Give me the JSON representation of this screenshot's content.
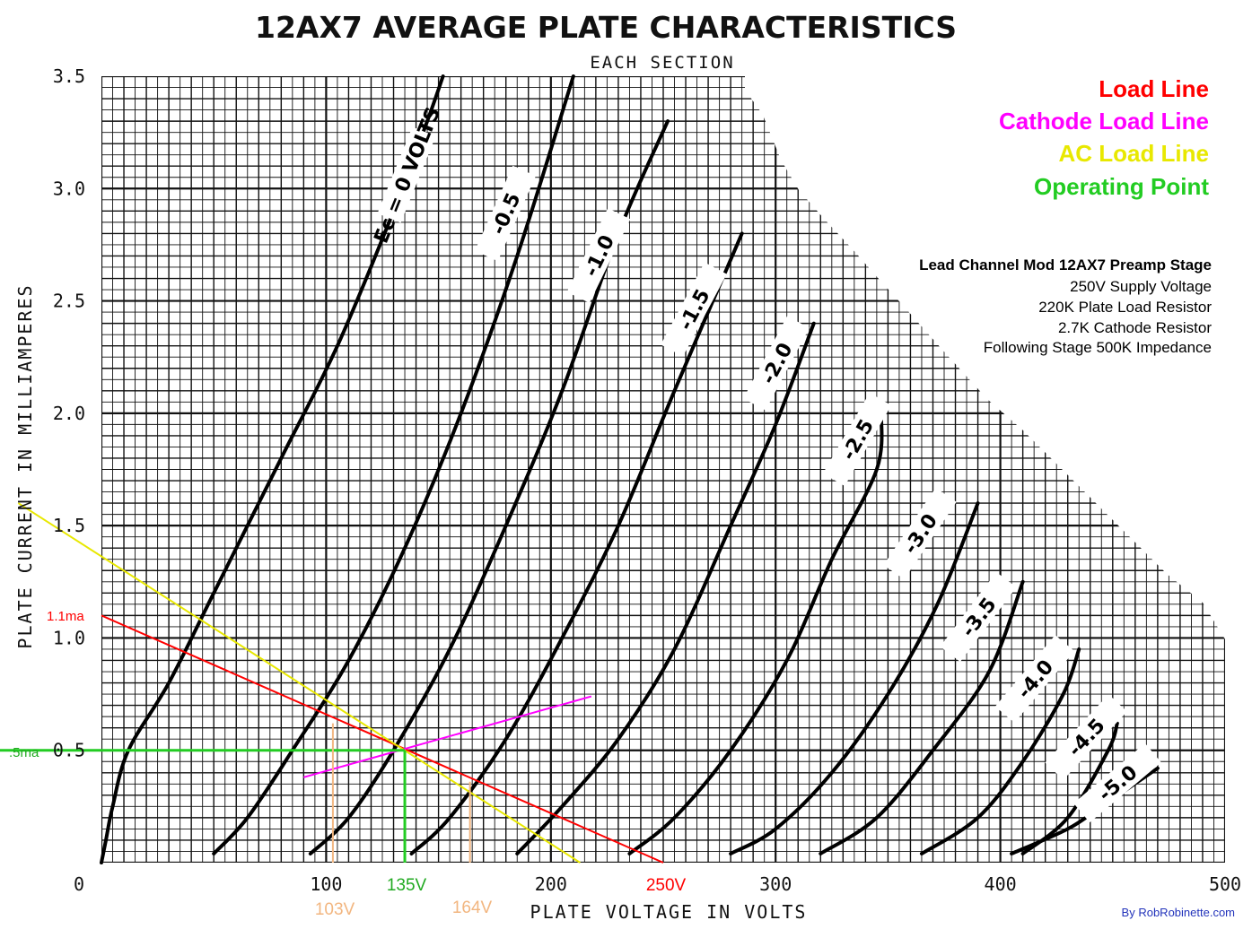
{
  "chart_data": {
    "type": "line",
    "title": "12AX7 AVERAGE PLATE CHARACTERISTICS",
    "subtitle": "EACH SECTION",
    "xlabel": "PLATE VOLTAGE IN VOLTS",
    "ylabel": "PLATE CURRENT IN MILLIAMPERES",
    "xlim": [
      0,
      500
    ],
    "ylim": [
      0,
      3.5
    ],
    "x_ticks": [
      "0",
      "100",
      "200",
      "300",
      "400",
      "500"
    ],
    "y_ticks": [
      "3.5",
      "3.0",
      "2.5",
      "2.0",
      "1.5",
      "1.0",
      "0.5"
    ],
    "grid": true,
    "legend_position": "top-right",
    "legend": [
      {
        "name": "Load Line",
        "color": "#ff0000"
      },
      {
        "name": "Cathode Load Line",
        "color": "#ff00ff"
      },
      {
        "name": "AC Load Line",
        "color": "#e8e800"
      },
      {
        "name": "Operating Point",
        "color": "#22cc22"
      }
    ],
    "curve_labels": [
      "Ec = 0 VOLTS",
      "-0.5",
      "-1.0",
      "-1.5",
      "-2.0",
      "-2.5",
      "-3.0",
      "-3.5",
      "-4.0",
      "-4.5",
      "-5.0"
    ],
    "series": [
      {
        "name": "Ec = 0 VOLTS",
        "points": [
          [
            0,
            0
          ],
          [
            2,
            0.1
          ],
          [
            5,
            0.25
          ],
          [
            12,
            0.5
          ],
          [
            30,
            0.8
          ],
          [
            50,
            1.2
          ],
          [
            80,
            1.8
          ],
          [
            105,
            2.3
          ],
          [
            130,
            2.9
          ],
          [
            145,
            3.3
          ],
          [
            152,
            3.5
          ]
        ]
      },
      {
        "name": "-0.5",
        "points": [
          [
            50,
            0.04
          ],
          [
            65,
            0.2
          ],
          [
            85,
            0.5
          ],
          [
            110,
            0.9
          ],
          [
            135,
            1.4
          ],
          [
            160,
            2.0
          ],
          [
            185,
            2.7
          ],
          [
            210,
            3.5
          ]
        ]
      },
      {
        "name": "-1.0",
        "points": [
          [
            93,
            0.04
          ],
          [
            110,
            0.2
          ],
          [
            130,
            0.5
          ],
          [
            155,
            0.95
          ],
          [
            180,
            1.5
          ],
          [
            205,
            2.1
          ],
          [
            230,
            2.8
          ],
          [
            252,
            3.3
          ]
        ]
      },
      {
        "name": "-1.5",
        "points": [
          [
            138,
            0.04
          ],
          [
            155,
            0.2
          ],
          [
            180,
            0.55
          ],
          [
            205,
            1.0
          ],
          [
            230,
            1.5
          ],
          [
            255,
            2.1
          ],
          [
            285,
            2.8
          ]
        ]
      },
      {
        "name": "-2.0",
        "points": [
          [
            185,
            0.04
          ],
          [
            205,
            0.25
          ],
          [
            230,
            0.55
          ],
          [
            255,
            0.95
          ],
          [
            280,
            1.5
          ],
          [
            300,
            1.95
          ],
          [
            317,
            2.4
          ]
        ]
      },
      {
        "name": "-2.5",
        "points": [
          [
            235,
            0.04
          ],
          [
            255,
            0.2
          ],
          [
            280,
            0.5
          ],
          [
            305,
            0.9
          ],
          [
            325,
            1.35
          ],
          [
            345,
            1.75
          ],
          [
            347,
            2.0
          ]
        ]
      },
      {
        "name": "-3.0",
        "points": [
          [
            280,
            0.04
          ],
          [
            300,
            0.15
          ],
          [
            325,
            0.4
          ],
          [
            350,
            0.75
          ],
          [
            372,
            1.15
          ],
          [
            390,
            1.6
          ]
        ]
      },
      {
        "name": "-3.5",
        "points": [
          [
            320,
            0.04
          ],
          [
            345,
            0.2
          ],
          [
            370,
            0.5
          ],
          [
            395,
            0.85
          ],
          [
            410,
            1.25
          ]
        ]
      },
      {
        "name": "-4.0",
        "points": [
          [
            365,
            0.04
          ],
          [
            390,
            0.2
          ],
          [
            410,
            0.45
          ],
          [
            428,
            0.75
          ],
          [
            435,
            0.95
          ]
        ]
      },
      {
        "name": "-4.5",
        "points": [
          [
            410,
            0.04
          ],
          [
            430,
            0.2
          ],
          [
            448,
            0.5
          ],
          [
            452,
            0.62
          ]
        ]
      },
      {
        "name": "-5.0",
        "points": [
          [
            405,
            0.04
          ],
          [
            430,
            0.15
          ],
          [
            445,
            0.25
          ],
          [
            470,
            0.42
          ]
        ]
      }
    ],
    "load_line": {
      "points": [
        [
          0,
          1.1
        ],
        [
          250,
          0
        ]
      ],
      "color": "#ff0000"
    },
    "cathode_load_line": {
      "points": [
        [
          90,
          0.38
        ],
        [
          218,
          0.74
        ]
      ],
      "color": "#ff00ff"
    },
    "ac_load_line": {
      "points": [
        [
          -37,
          1.6
        ],
        [
          213,
          0
        ]
      ],
      "color": "#e8e800"
    },
    "operating_point": {
      "x": 135,
      "y": 0.5,
      "color": "#22cc22"
    },
    "orange_guides": [
      103,
      164
    ],
    "annotations": {
      "ma_1_1": "1.1ma",
      "ma_0_5": ".5ma",
      "v135": "135V",
      "v250": "250V",
      "v103": "103V",
      "v164": "164V"
    },
    "info_box": {
      "title": "Lead Channel Mod 12AX7 Preamp Stage",
      "lines": [
        "250V Supply Voltage",
        "220K Plate Load Resistor",
        "2.7K Cathode Resistor",
        "Following Stage 500K Impedance"
      ]
    },
    "credit": "By RobRobinette.com"
  }
}
